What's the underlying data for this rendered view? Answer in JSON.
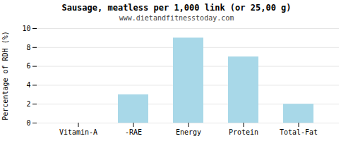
{
  "chart_data": {
    "type": "bar",
    "title": "Sausage, meatless per 1,000 link (or 25,00 g)",
    "subtitle": "www.dietandfitnesstoday.com",
    "categories": [
      "Vitamin-A",
      "-RAE",
      "Energy",
      "Protein",
      "Total-Fat"
    ],
    "values": [
      0,
      3,
      9,
      7,
      2
    ],
    "color": "#a8d8e8",
    "ylabel": "Percentage of RDH (%)",
    "ylim": [
      0,
      10
    ],
    "yticks": [
      0,
      2,
      4,
      6,
      8,
      10
    ],
    "grid": true
  }
}
